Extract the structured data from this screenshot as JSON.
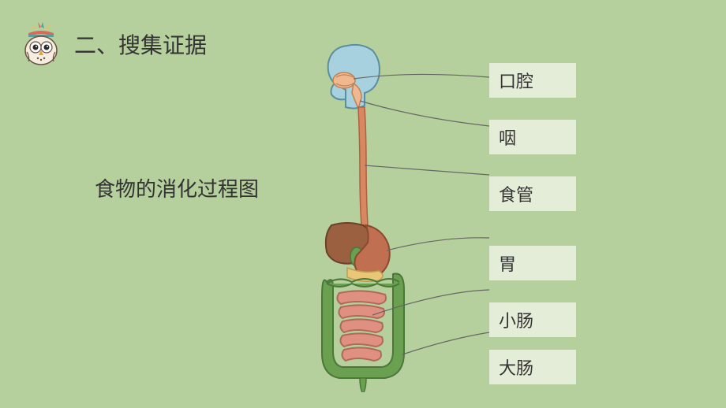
{
  "header": {
    "section_title": "二、搜集证据"
  },
  "caption": "食物的消化过程图",
  "background_color": "#b5cf9d",
  "label_box": {
    "background": "#e4edd8",
    "font_size": 22,
    "text_color": "#333333",
    "width": 110
  },
  "organs": [
    {
      "id": "mouth",
      "label": "口腔",
      "gap_after": 28
    },
    {
      "id": "pharynx",
      "label": "咽",
      "gap_after": 28
    },
    {
      "id": "esophagus",
      "label": "食管",
      "gap_after": 44
    },
    {
      "id": "stomach",
      "label": "胃",
      "gap_after": 28
    },
    {
      "id": "small-intestine",
      "label": "小肠",
      "gap_after": 16
    },
    {
      "id": "large-intestine",
      "label": "大肠",
      "gap_after": 0
    }
  ],
  "diagram_colors": {
    "skull": "#a8d1e0",
    "skull_outline": "#5a8fa0",
    "mouth_inner": "#f0b890",
    "esophagus": "#d88860",
    "liver": "#9a6040",
    "stomach": "#c07050",
    "stomach_outline": "#6aa050",
    "small_intestine": "#e09080",
    "large_intestine": "#6aa050",
    "leader_line": "#666666"
  },
  "owl_colors": {
    "body": "#f4ede0",
    "feather_red": "#d96a5a",
    "feather_teal": "#5aa09a",
    "feather_yellow": "#e8c060",
    "outline": "#6a5040",
    "beak": "#e8a030"
  }
}
